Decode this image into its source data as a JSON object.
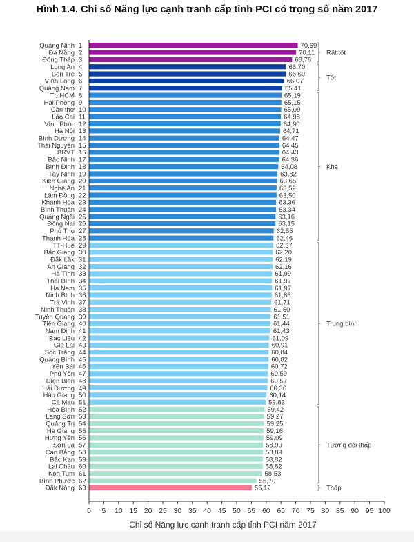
{
  "chart_data": {
    "type": "bar",
    "orientation": "horizontal",
    "title": "Hình 1.4. Chỉ số Năng lực cạnh tranh cấp tỉnh PCI có trọng số năm 2017",
    "xlabel": "Chỉ số Năng lực cạnh tranh cấp tỉnh PCI năm 2017",
    "ylabel": "",
    "xlim": [
      0,
      100
    ],
    "xticks": [
      0,
      5,
      10,
      15,
      20,
      25,
      30,
      35,
      40,
      45,
      50,
      55,
      60,
      65,
      70,
      75,
      80,
      85,
      90,
      95,
      100
    ],
    "grid": false,
    "legend": "none",
    "categories": [
      "Quảng Ninh",
      "Đà Nẵng",
      "Đồng Tháp",
      "Long An",
      "Bến Tre",
      "Vĩnh Long",
      "Quảng Nam",
      "Tp.HCM",
      "Hải Phòng",
      "Cần thơ",
      "Lào Cai",
      "Vĩnh Phúc",
      "Hà Nội",
      "Bình Dương",
      "Thái Nguyên",
      "BRVT",
      "Bắc Ninh",
      "Bình Định",
      "Tây Ninh",
      "Kiên Giang",
      "Nghệ An",
      "Lâm Đồng",
      "Khánh Hòa",
      "Bình Thuận",
      "Quảng Ngãi",
      "Đồng Nai",
      "Phú Thọ",
      "Thanh Hóa",
      "TT-Huế",
      "Bắc Giang",
      "Đắk Lắk",
      "An Giang",
      "Hà Tĩnh",
      "Thái Bình",
      "Hà Nam",
      "Ninh Bình",
      "Trà Vinh",
      "Ninh Thuận",
      "Tuyên Quang",
      "Tiền Giang",
      "Nam Định",
      "Bạc Liêu",
      "Gia Lai",
      "Sóc Trăng",
      "Quảng Bình",
      "Yên Bái",
      "Phú Yên",
      "Điện Biên",
      "Hải Dương",
      "Hậu Giang",
      "Cà Mau",
      "Hòa Bình",
      "Lạng Sơn",
      "Quảng Trị",
      "Hà Giang",
      "Hưng Yên",
      "Sơn La",
      "Cao Bằng",
      "Bắc Kạn",
      "Lai Châu",
      "Kon Tum",
      "Bình Phước",
      "Đắk Nông"
    ],
    "ranks": [
      1,
      2,
      3,
      4,
      5,
      6,
      7,
      8,
      9,
      10,
      11,
      12,
      13,
      14,
      15,
      16,
      17,
      18,
      19,
      20,
      21,
      22,
      23,
      24,
      25,
      26,
      27,
      28,
      29,
      30,
      31,
      32,
      33,
      34,
      35,
      36,
      37,
      38,
      39,
      40,
      41,
      42,
      43,
      44,
      45,
      46,
      47,
      48,
      49,
      50,
      51,
      52,
      53,
      54,
      55,
      56,
      57,
      58,
      59,
      60,
      61,
      62,
      63
    ],
    "values": [
      70.69,
      70.11,
      68.78,
      66.7,
      66.69,
      66.07,
      65.41,
      65.19,
      65.15,
      65.09,
      64.98,
      64.9,
      64.71,
      64.47,
      64.45,
      64.43,
      64.36,
      64.08,
      63.82,
      63.65,
      63.52,
      63.5,
      63.36,
      63.34,
      63.16,
      63.15,
      62.55,
      62.46,
      62.37,
      62.2,
      62.19,
      62.16,
      61.99,
      61.97,
      61.97,
      61.86,
      61.71,
      61.6,
      61.51,
      61.44,
      61.43,
      61.09,
      60.91,
      60.84,
      60.82,
      60.72,
      60.59,
      60.57,
      60.36,
      60.14,
      59.83,
      59.42,
      59.27,
      59.25,
      59.16,
      59.09,
      58.9,
      58.89,
      58.82,
      58.82,
      58.53,
      56.7,
      55.12
    ],
    "value_labels": [
      "70,69",
      "70,11",
      "68,78",
      "66,70",
      "66,69",
      "66,07",
      "65,41",
      "65,19",
      "65,15",
      "65,09",
      "64,98",
      "64,90",
      "64,71",
      "64,47",
      "64,45",
      "64,43",
      "64,36",
      "64,08",
      "63,82",
      "63,65",
      "63,52",
      "63,50",
      "63,36",
      "63,34",
      "63,16",
      "63,15",
      "62,55",
      "62,46",
      "62,37",
      "62,20",
      "62,19",
      "62,16",
      "61,99",
      "61,97",
      "61,97",
      "61,86",
      "61,71",
      "61,60",
      "61,51",
      "61,44",
      "61,43",
      "61,09",
      "60,91",
      "60,84",
      "60,82",
      "60,72",
      "60,59",
      "60,57",
      "60,36",
      "60,14",
      "59,83",
      "59,42",
      "59,27",
      "59,25",
      "59,16",
      "59,09",
      "58,90",
      "58,89",
      "58,82",
      "58,82",
      "58,53",
      "56,70",
      "55,12"
    ],
    "groups": [
      {
        "name": "Rất tốt",
        "from_rank": 1,
        "to_rank": 3,
        "color": "#9b1a9b"
      },
      {
        "name": "Tốt",
        "from_rank": 4,
        "to_rank": 7,
        "color": "#0b3fa3"
      },
      {
        "name": "Khá",
        "from_rank": 8,
        "to_rank": 28,
        "color": "#2a8ad8"
      },
      {
        "name": "Trung bình",
        "from_rank": 29,
        "to_rank": 51,
        "color": "#7dcff5"
      },
      {
        "name": "Tương đối thấp",
        "from_rank": 52,
        "to_rank": 62,
        "color": "#a9e2cf"
      },
      {
        "name": "Thấp",
        "from_rank": 63,
        "to_rank": 63,
        "color": "#f77a94"
      }
    ]
  }
}
